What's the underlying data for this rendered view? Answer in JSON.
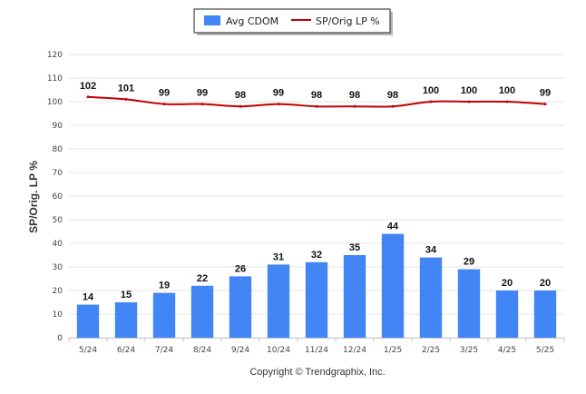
{
  "chart_data": {
    "type": "bar",
    "categories": [
      "5/24",
      "6/24",
      "7/24",
      "8/24",
      "9/24",
      "10/24",
      "11/24",
      "12/24",
      "1/25",
      "2/25",
      "3/25",
      "4/25",
      "5/25"
    ],
    "series": [
      {
        "name": "Avg CDOM",
        "kind": "bar",
        "color": "#4285f4",
        "values": [
          14,
          15,
          19,
          22,
          26,
          31,
          32,
          35,
          44,
          34,
          29,
          20,
          20
        ]
      },
      {
        "name": "SP/Orig LP %",
        "kind": "line",
        "color": "#c00000",
        "values": [
          102,
          101,
          99,
          99,
          98,
          99,
          98,
          98,
          98,
          100,
          100,
          100,
          99
        ]
      }
    ],
    "ylabel": "SP/Orig. LP %",
    "ylim": [
      0,
      120
    ],
    "yticks": [
      0,
      10,
      20,
      30,
      40,
      50,
      60,
      70,
      80,
      90,
      100,
      110,
      120
    ],
    "grid": true,
    "legend_position": "top-center"
  },
  "footer": {
    "copyright": "Copyright © Trendgraphix, Inc."
  }
}
